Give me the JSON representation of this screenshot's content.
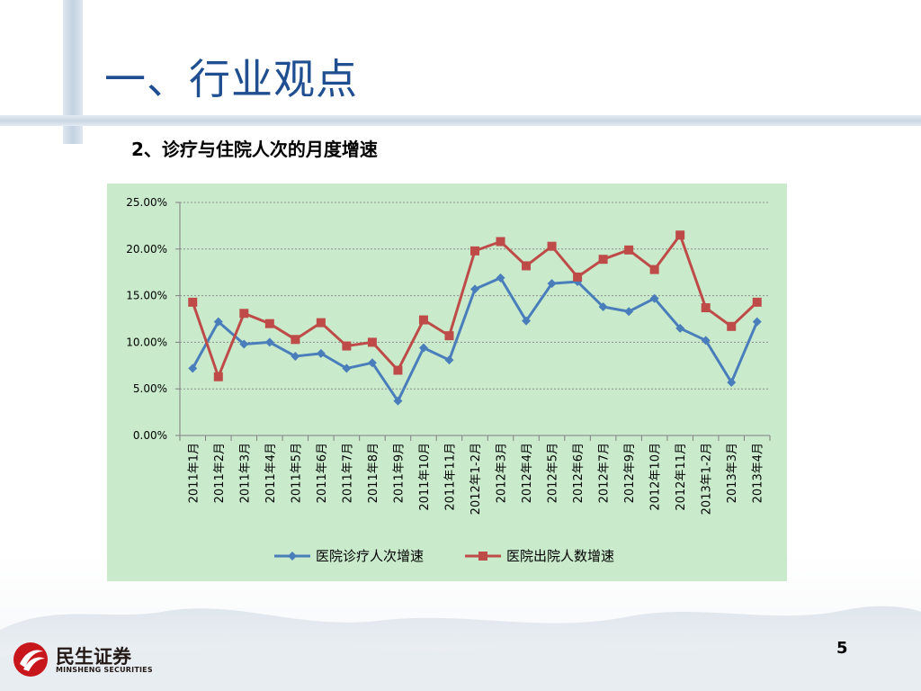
{
  "slide": {
    "title": "一、行业观点",
    "subtitle": "2、诊疗与住院人次的月度增速",
    "page_number": "5",
    "logo": {
      "name": "民生证券",
      "sub": "MINSHENG SECURITIES"
    }
  },
  "colors": {
    "title": "#1f4e91",
    "chart_bg": "#c9ebcc",
    "series_1": "#4a7ebb",
    "series_2": "#be4b48",
    "logo_red": "#c8161d"
  },
  "chart_data": {
    "type": "line",
    "title": "",
    "xlabel": "",
    "ylabel": "",
    "ylim": [
      0,
      0.25
    ],
    "y_ticks": [
      "0.00%",
      "5.00%",
      "10.00%",
      "15.00%",
      "20.00%",
      "25.00%"
    ],
    "grid": true,
    "legend_position": "bottom",
    "categories": [
      "2011年1月",
      "2011年2月",
      "2011年3月",
      "2011年4月",
      "2011年5月",
      "2011年6月",
      "2011年7月",
      "2011年8月",
      "2011年9月",
      "2011年10月",
      "2011年11月",
      "2012年1-2月",
      "2012年3月",
      "2012年4月",
      "2012年5月",
      "2012年6月",
      "2012年7月",
      "2012年9月",
      "2012年10月",
      "2012年11月",
      "2013年1-2月",
      "2013年3月",
      "2013年4月"
    ],
    "series": [
      {
        "name": "医院诊疗人次增速",
        "marker": "diamond",
        "values": [
          0.072,
          0.122,
          0.098,
          0.1,
          0.085,
          0.088,
          0.072,
          0.078,
          0.037,
          0.094,
          0.081,
          0.157,
          0.169,
          0.123,
          0.163,
          0.165,
          0.138,
          0.133,
          0.147,
          0.115,
          0.102,
          0.057,
          0.122
        ]
      },
      {
        "name": "医院出院人数增速",
        "marker": "square",
        "values": [
          0.143,
          0.063,
          0.131,
          0.12,
          0.103,
          0.121,
          0.096,
          0.1,
          0.07,
          0.124,
          0.107,
          0.198,
          0.208,
          0.182,
          0.203,
          0.17,
          0.189,
          0.199,
          0.178,
          0.215,
          0.137,
          0.117,
          0.143
        ]
      }
    ]
  }
}
